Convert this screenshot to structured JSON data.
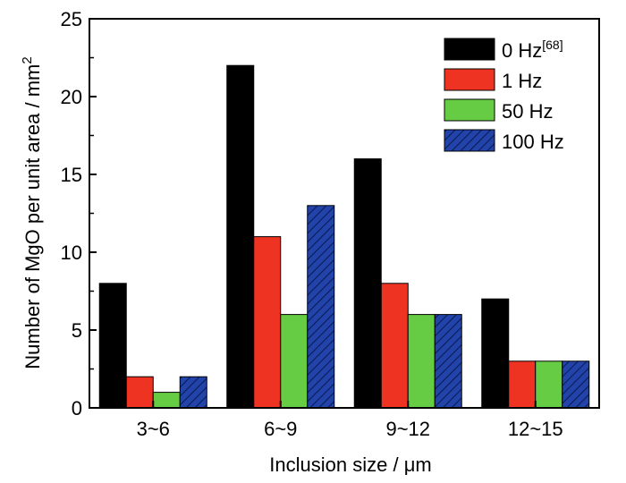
{
  "chart_data": {
    "type": "bar",
    "categories": [
      "3~6",
      "6~9",
      "9~12",
      "12~15"
    ],
    "series": [
      {
        "name": "0 Hz",
        "name_superscript": "[68]",
        "values": [
          8,
          22,
          16,
          7
        ],
        "color": "#000000",
        "pattern": "solid"
      },
      {
        "name": "1 Hz",
        "values": [
          2,
          11,
          8,
          3
        ],
        "color": "#ee3322",
        "pattern": "solid"
      },
      {
        "name": "50 Hz",
        "values": [
          1,
          6,
          6,
          3
        ],
        "color": "#66cc44",
        "pattern": "solid"
      },
      {
        "name": "100 Hz",
        "values": [
          2,
          13,
          6,
          3
        ],
        "color": "#2244aa",
        "pattern": "hatched"
      }
    ],
    "xlabel": "Inclusion size / μm",
    "ylabel": "Number of MgO per unit area / mm",
    "ylabel_superscript": "2",
    "ylim": [
      0,
      25
    ],
    "yticks": [
      0,
      5,
      10,
      15,
      20,
      25
    ],
    "legend_position": "top-right",
    "grid": false
  }
}
